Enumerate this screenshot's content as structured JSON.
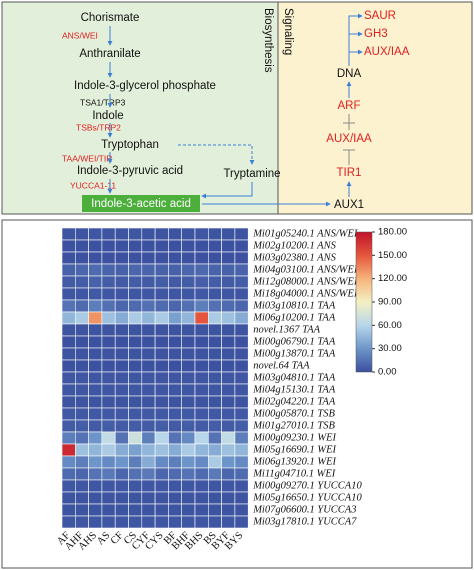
{
  "pathway": {
    "biosynthesis_label": "Biosynthesis",
    "signaling_label": "Signaling",
    "compounds": [
      "Chorismate",
      "Anthranilate",
      "Indole-3-glycerol phosphate",
      "Indole",
      "Tryptophan",
      "Indole-3-pyruvic acid",
      "Indole-3-acetic acid",
      "Tryptamine"
    ],
    "enzymes": [
      "ANS/WEI",
      "TSA1/TRP3",
      "TSBs/TRP2",
      "TAA/WEI/TIR",
      "YUCCA1-11"
    ],
    "signaling": [
      "SAUR",
      "GH3",
      "AUX/IAA",
      "DNA",
      "ARF",
      "AUX/IAA",
      "TIR1",
      "AUX1"
    ]
  },
  "chart_data": {
    "type": "heatmap",
    "x": [
      "AF",
      "AHF",
      "AHS",
      "AS",
      "CF",
      "CS",
      "CYF",
      "CYS",
      "BF",
      "BHF",
      "BHS",
      "BS",
      "BYF",
      "BYS"
    ],
    "y": [
      "Mi01g05240.1 ANS/WEI",
      "Mi02g10200.1 ANS",
      "Mi03g02380.1 ANS",
      "Mi04g03100.1 ANS/WEI",
      "Mi12g08000.1 ANS/WEI",
      "Mi18g04000.1 ANS/WEI",
      "Mi03g10810.1 TAA",
      "Mi06g10200.1 TAA",
      "novel.1367 TAA",
      "Mi00g06790.1 TAA",
      "Mi00g13870.1 TAA",
      "novel.64 TAA",
      "Mi03g04810.1 TAA",
      "Mi04g15130.1 TAA",
      "Mi02g04220.1 TAA",
      "Mi00g05870.1 TSB",
      "Mi01g27010.1 TSB",
      "Mi00g09230.1 WEI",
      "Mi05g16690.1 WEI",
      "Mi06g13920.1 WEI",
      "Mi11g04710.1 WEI",
      "Mi00g09270.1 YUCCA10",
      "Mi05g16650.1 YUCCA10",
      "Mi07g06600.1 YUCCA3",
      "Mi03g17810.1 YUCCA7"
    ],
    "values": [
      [
        2,
        2,
        3,
        2,
        2,
        3,
        2,
        2,
        2,
        2,
        3,
        2,
        2,
        2
      ],
      [
        1,
        1,
        1,
        1,
        1,
        1,
        1,
        1,
        1,
        1,
        1,
        1,
        1,
        1
      ],
      [
        1,
        1,
        1,
        1,
        1,
        1,
        1,
        1,
        1,
        1,
        1,
        1,
        1,
        1
      ],
      [
        8,
        10,
        12,
        9,
        8,
        10,
        9,
        8,
        8,
        10,
        11,
        9,
        8,
        9
      ],
      [
        5,
        6,
        8,
        6,
        5,
        6,
        5,
        6,
        5,
        6,
        7,
        6,
        5,
        6
      ],
      [
        3,
        3,
        4,
        3,
        3,
        3,
        3,
        3,
        3,
        3,
        4,
        3,
        3,
        3
      ],
      [
        15,
        12,
        20,
        14,
        10,
        12,
        14,
        12,
        10,
        14,
        20,
        14,
        12,
        10
      ],
      [
        45,
        55,
        130,
        50,
        40,
        55,
        45,
        55,
        35,
        45,
        150,
        55,
        50,
        40
      ],
      [
        2,
        2,
        2,
        2,
        2,
        2,
        2,
        2,
        2,
        2,
        2,
        2,
        2,
        2
      ],
      [
        1,
        1,
        1,
        1,
        1,
        1,
        1,
        1,
        1,
        1,
        1,
        1,
        1,
        1
      ],
      [
        2,
        2,
        2,
        2,
        2,
        2,
        2,
        2,
        2,
        2,
        2,
        2,
        2,
        2
      ],
      [
        1,
        1,
        1,
        1,
        1,
        1,
        1,
        1,
        1,
        1,
        1,
        1,
        1,
        1
      ],
      [
        3,
        3,
        3,
        3,
        3,
        3,
        3,
        3,
        3,
        3,
        3,
        3,
        3,
        3
      ],
      [
        3,
        3,
        3,
        3,
        3,
        3,
        3,
        3,
        3,
        3,
        3,
        3,
        3,
        3
      ],
      [
        2,
        2,
        2,
        2,
        2,
        2,
        2,
        2,
        2,
        2,
        2,
        2,
        2,
        2
      ],
      [
        4,
        4,
        4,
        4,
        4,
        4,
        4,
        4,
        4,
        4,
        4,
        4,
        4,
        4
      ],
      [
        5,
        6,
        5,
        6,
        5,
        6,
        5,
        6,
        5,
        6,
        5,
        6,
        5,
        6
      ],
      [
        20,
        15,
        30,
        65,
        15,
        70,
        20,
        60,
        15,
        25,
        60,
        15,
        65,
        20
      ],
      [
        170,
        50,
        45,
        55,
        40,
        35,
        45,
        50,
        40,
        55,
        45,
        40,
        50,
        45
      ],
      [
        25,
        20,
        30,
        25,
        30,
        20,
        40,
        25,
        20,
        30,
        25,
        55,
        30,
        25
      ],
      [
        12,
        10,
        15,
        18,
        10,
        14,
        18,
        10,
        12,
        15,
        12,
        18,
        10,
        12
      ],
      [
        3,
        3,
        3,
        3,
        3,
        3,
        3,
        3,
        3,
        3,
        3,
        3,
        3,
        3
      ],
      [
        2,
        2,
        2,
        2,
        2,
        2,
        2,
        2,
        2,
        2,
        2,
        2,
        2,
        2
      ],
      [
        2,
        2,
        2,
        2,
        2,
        2,
        2,
        2,
        2,
        2,
        2,
        2,
        2,
        2
      ],
      [
        3,
        3,
        3,
        3,
        3,
        3,
        3,
        3,
        3,
        3,
        3,
        3,
        3,
        3
      ]
    ],
    "clim": [
      0,
      180
    ],
    "cticks": [
      {
        "value": 0,
        "label": "0.00"
      },
      {
        "value": 30,
        "label": "30.00"
      },
      {
        "value": 60,
        "label": "60.00"
      },
      {
        "value": 90,
        "label": "90.00"
      },
      {
        "value": 120,
        "label": "120.00"
      },
      {
        "value": 150,
        "label": "150.00"
      },
      {
        "value": 180,
        "label": "180.00"
      }
    ],
    "colormap": [
      "#3a4f9e",
      "#6d95c9",
      "#b7d6ea",
      "#f4f0c4",
      "#f6b37b",
      "#e5553d",
      "#c0142a"
    ]
  }
}
